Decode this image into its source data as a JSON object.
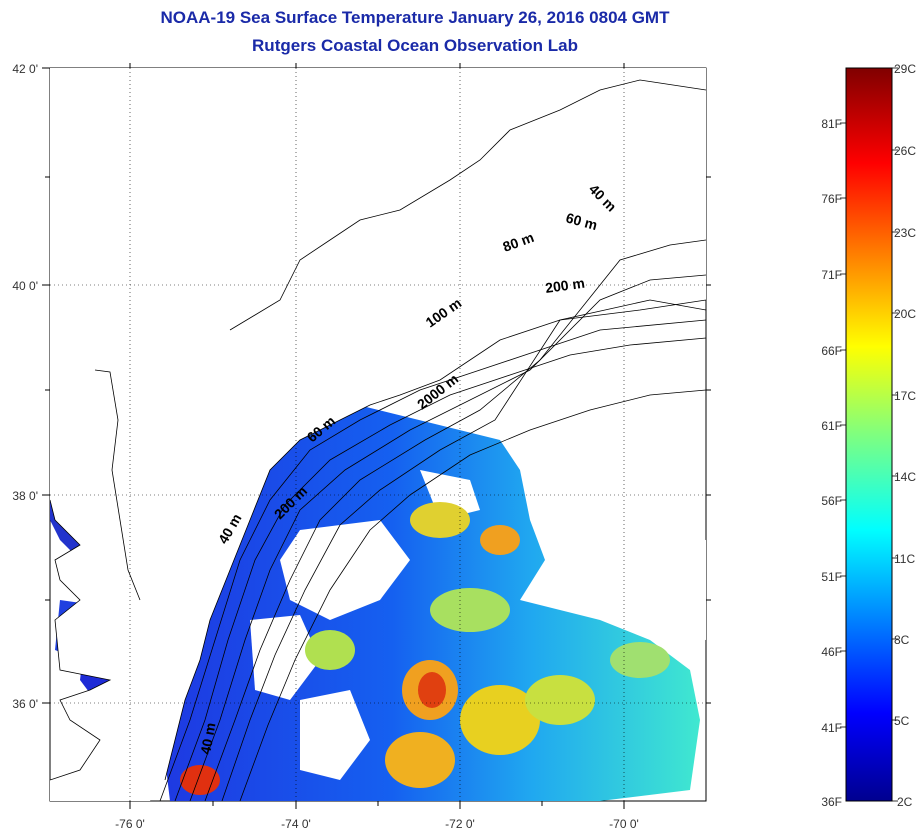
{
  "title": "NOAA-19 Sea Surface Temperature January 26, 2016 0804 GMT",
  "subtitle": "Rutgers Coastal Ocean Observation Lab",
  "map": {
    "lat_labels": [
      "42 0'",
      "40 0'",
      "38 0'",
      "36 0'"
    ],
    "lon_labels": [
      "-76 0'",
      "-74 0'",
      "-72 0'",
      "-70 0'"
    ],
    "contour_labels": [
      "40 m",
      "60 m",
      "80 m",
      "100 m",
      "200 m",
      "2000 m",
      "60 m",
      "40 m",
      "200 m",
      "40 m"
    ]
  },
  "colorbar": {
    "fahrenheit": [
      "81F",
      "76F",
      "71F",
      "66F",
      "61F",
      "56F",
      "51F",
      "46F",
      "41F",
      "36F"
    ],
    "celsius": [
      "29C",
      "26C",
      "23C",
      "20C",
      "17C",
      "14C",
      "11C",
      "8C",
      "5C",
      "2C"
    ],
    "scale": "jet"
  }
}
